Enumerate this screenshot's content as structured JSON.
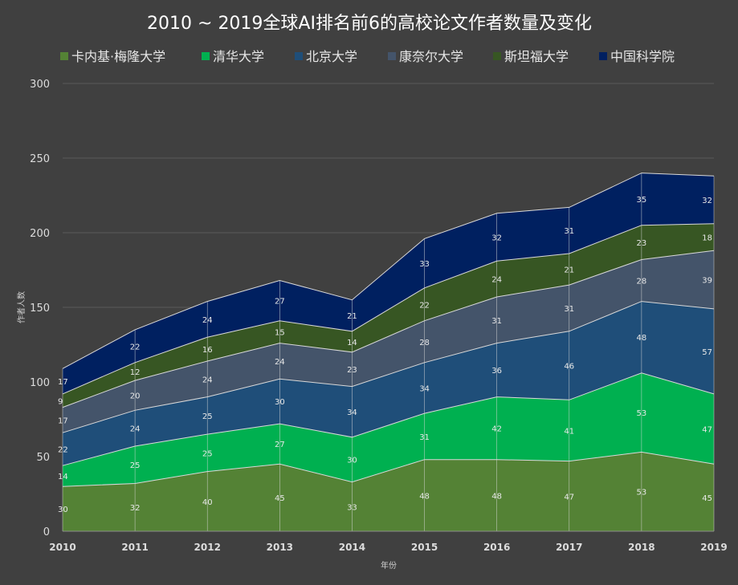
{
  "chart_data": {
    "type": "area",
    "stacked": true,
    "title": "2010 ~ 2019全球AI排名前6的高校论文作者数量及变化",
    "xlabel": "年份",
    "ylabel": "作者人数",
    "ylim": [
      0,
      300
    ],
    "yticks": [
      0,
      50,
      100,
      150,
      200,
      250,
      300
    ],
    "grid": true,
    "legend_position": "top",
    "categories": [
      "2010",
      "2011",
      "2012",
      "2013",
      "2014",
      "2015",
      "2016",
      "2017",
      "2018",
      "2019"
    ],
    "series": [
      {
        "name": "卡内基·梅隆大学",
        "color": "#548235",
        "values": [
          30,
          32,
          40,
          45,
          33,
          48,
          48,
          47,
          53,
          45
        ]
      },
      {
        "name": "清华大学",
        "color": "#00b050",
        "values": [
          14,
          25,
          25,
          27,
          30,
          31,
          42,
          41,
          53,
          47
        ]
      },
      {
        "name": "北京大学",
        "color": "#1f4e79",
        "values": [
          22,
          24,
          25,
          30,
          34,
          34,
          36,
          46,
          48,
          57
        ]
      },
      {
        "name": "康奈尔大学",
        "color": "#44546a",
        "values": [
          17,
          20,
          24,
          24,
          23,
          28,
          31,
          31,
          28,
          39
        ]
      },
      {
        "name": "斯坦福大学",
        "color": "#375623",
        "values": [
          9,
          12,
          16,
          15,
          14,
          22,
          24,
          21,
          23,
          18
        ]
      },
      {
        "name": "中国科学院",
        "color": "#002060",
        "values": [
          17,
          22,
          24,
          27,
          21,
          33,
          32,
          31,
          35,
          32
        ]
      }
    ]
  }
}
